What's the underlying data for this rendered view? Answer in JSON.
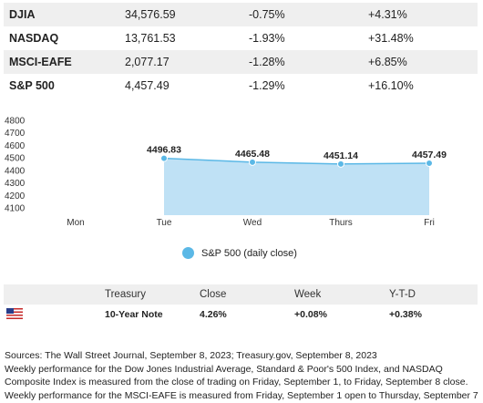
{
  "index_table": {
    "rows": [
      {
        "name": "DJIA",
        "close": "34,576.59",
        "week": "-0.75%",
        "ytd": "+4.31%"
      },
      {
        "name": "NASDAQ",
        "close": "13,761.53",
        "week": "-1.93%",
        "ytd": "+31.48%"
      },
      {
        "name": "MSCI-EAFE",
        "close": "2,077.17",
        "week": "-1.28%",
        "ytd": "+6.85%"
      },
      {
        "name": "S&P 500",
        "close": "4,457.49",
        "week": "-1.29%",
        "ytd": "+16.10%"
      }
    ]
  },
  "chart_data": {
    "type": "area",
    "title": "",
    "xlabel": "",
    "ylabel": "",
    "categories": [
      "Mon",
      "Tue",
      "Wed",
      "Thurs",
      "Fri"
    ],
    "x_tick_labels": [
      "Mon",
      "Tue",
      "Wed",
      "Thurs",
      "Fri"
    ],
    "y_tick_labels": [
      "4800",
      "4700",
      "4600",
      "4500",
      "4400",
      "4300",
      "4200",
      "4100"
    ],
    "ylim": [
      4100,
      4800
    ],
    "grid": false,
    "legend_position": "bottom",
    "fill_color": "#bfe1f5",
    "line_color": "#5bb8e6",
    "series": [
      {
        "name": "S&P 500 (daily close)",
        "values": [
          null,
          4496.83,
          4465.48,
          4451.14,
          4457.49
        ],
        "labels": [
          "",
          "4496.83",
          "4465.48",
          "4451.14",
          "4457.49"
        ]
      }
    ]
  },
  "treasury": {
    "headers": {
      "name": "Treasury",
      "close": "Close",
      "week": "Week",
      "ytd": "Y-T-D"
    },
    "row": {
      "name": "10-Year Note",
      "close": "4.26%",
      "week": "+0.08%",
      "ytd": "+0.38%"
    },
    "flag_icon": "us-flag-icon"
  },
  "sources": {
    "lines": [
      "Sources: The Wall Street Journal, September 8, 2023; Treasury.gov, September 8, 2023",
      "Weekly performance for the Dow Jones Industrial Average, Standard & Poor's 500 Index, and NASDAQ",
      "Composite Index is measured from the close of trading on Friday, September 1, to Friday, September 8 close.",
      "Weekly performance for the MSCI-EAFE is measured from Friday, September 1 open to Thursday, September 7"
    ]
  }
}
